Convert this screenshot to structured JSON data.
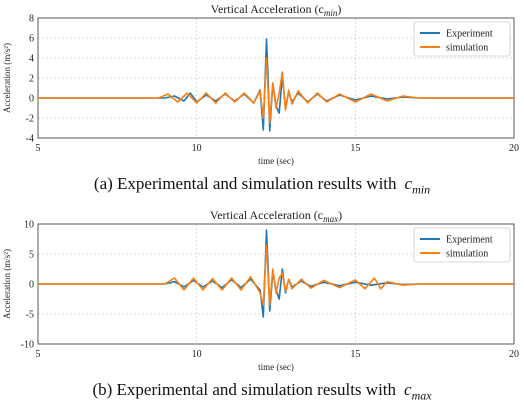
{
  "captions": [
    {
      "prefix": "(a) Experimental and simulation results with",
      "symbol": "c",
      "subscript": "min"
    },
    {
      "prefix": "(b) Experimental and simulation results with",
      "symbol": "c",
      "subscript": "max"
    }
  ],
  "chart_data": [
    {
      "type": "line",
      "title": "Vertical Acceleration (c",
      "title_sub": "min",
      "title_end": ")",
      "xlabel": "time (sec)",
      "ylabel": "Acceleration (m/s²)",
      "xlim": [
        5,
        20
      ],
      "ylim": [
        -4,
        8
      ],
      "xticks": [
        5,
        10,
        15,
        20
      ],
      "yticks": [
        -4,
        -2,
        0,
        2,
        4,
        6,
        8
      ],
      "grid": true,
      "legend": "top-right",
      "series": [
        {
          "name": "Experiment",
          "color": "#1f77b4",
          "x": [
            5,
            9.0,
            9.3,
            9.6,
            9.8,
            10.0,
            10.3,
            10.6,
            10.9,
            11.2,
            11.5,
            11.8,
            12.0,
            12.1,
            12.2,
            12.25,
            12.3,
            12.35,
            12.4,
            12.5,
            12.6,
            12.7,
            12.8,
            12.9,
            13.0,
            13.2,
            13.5,
            13.8,
            14.1,
            14.5,
            15.0,
            15.5,
            16.0,
            16.5,
            17.0,
            20
          ],
          "values": [
            0,
            0,
            0.2,
            -0.3,
            0.5,
            -0.4,
            0.3,
            -0.3,
            0.4,
            -0.3,
            0.4,
            -0.5,
            0.8,
            -3.2,
            5.9,
            2.0,
            -3.3,
            -1.0,
            1.5,
            -0.8,
            -1.5,
            2.2,
            -1.0,
            0.6,
            -0.4,
            0.5,
            -0.4,
            0.4,
            -0.3,
            0.3,
            -0.2,
            0.2,
            -0.1,
            0.1,
            0,
            0
          ]
        },
        {
          "name": "simulation",
          "color": "#ff7f0e",
          "x": [
            5,
            8.8,
            9.1,
            9.4,
            9.7,
            10.0,
            10.3,
            10.6,
            10.9,
            11.2,
            11.5,
            11.8,
            12.0,
            12.1,
            12.2,
            12.3,
            12.4,
            12.5,
            12.6,
            12.7,
            12.8,
            12.9,
            13.0,
            13.2,
            13.5,
            13.8,
            14.1,
            14.5,
            15.0,
            15.5,
            16.0,
            16.5,
            17.0,
            20
          ],
          "values": [
            0,
            0,
            0.4,
            -0.4,
            0.5,
            -0.5,
            0.5,
            -0.5,
            0.5,
            -0.4,
            0.5,
            -0.5,
            0.7,
            -2.0,
            4.0,
            -2.5,
            1.5,
            -1.0,
            0.5,
            2.6,
            -1.2,
            0.8,
            -0.6,
            0.7,
            -0.5,
            0.5,
            -0.4,
            0.4,
            -0.4,
            0.4,
            -0.3,
            0.2,
            0,
            0
          ]
        }
      ]
    },
    {
      "type": "line",
      "title": "Vertical Acceleration (c",
      "title_sub": "max",
      "title_end": ")",
      "xlabel": "time (sec)",
      "ylabel": "Acceleration (m/s²)",
      "xlim": [
        5,
        20
      ],
      "ylim": [
        -10,
        10
      ],
      "xticks": [
        5,
        10,
        15,
        20
      ],
      "yticks": [
        -10,
        -5,
        0,
        5,
        10
      ],
      "grid": true,
      "legend": "top-right",
      "series": [
        {
          "name": "Experiment",
          "color": "#1f77b4",
          "x": [
            5,
            9.0,
            9.3,
            9.6,
            9.9,
            10.2,
            10.5,
            10.8,
            11.1,
            11.4,
            11.7,
            12.0,
            12.1,
            12.2,
            12.25,
            12.3,
            12.35,
            12.4,
            12.5,
            12.6,
            12.7,
            12.8,
            12.9,
            13.0,
            13.3,
            13.6,
            14.0,
            14.5,
            15.0,
            15.5,
            16.0,
            16.5,
            17.0,
            20
          ],
          "values": [
            0,
            0,
            0.4,
            -0.5,
            0.6,
            -0.5,
            0.5,
            -0.6,
            0.7,
            -0.6,
            0.8,
            -1.0,
            -5.5,
            9.0,
            3.0,
            -4.5,
            -1.5,
            2.0,
            -1.0,
            -2.5,
            2.5,
            -1.5,
            0.8,
            -0.5,
            0.5,
            -0.4,
            0.3,
            -0.3,
            0.3,
            -0.2,
            0.2,
            -0.1,
            0,
            0
          ]
        },
        {
          "name": "simulation",
          "color": "#ff7f0e",
          "x": [
            5,
            9.0,
            9.3,
            9.6,
            9.9,
            10.2,
            10.5,
            10.8,
            11.1,
            11.4,
            11.7,
            12.0,
            12.1,
            12.2,
            12.3,
            12.4,
            12.5,
            12.6,
            12.7,
            12.8,
            12.9,
            13.0,
            13.3,
            13.6,
            14.0,
            14.5,
            15.0,
            15.3,
            15.6,
            15.8,
            16.0,
            16.5,
            17.0,
            20
          ],
          "values": [
            0,
            0,
            1.0,
            -1.0,
            1.0,
            -1.0,
            0.9,
            -1.0,
            1.0,
            -1.0,
            1.2,
            -1.5,
            -3.5,
            6.5,
            -3.5,
            2.5,
            -1.5,
            1.0,
            1.8,
            -1.2,
            0.8,
            -0.8,
            0.8,
            -0.7,
            0.6,
            -0.6,
            0.7,
            -0.8,
            1.0,
            -0.8,
            0.4,
            -0.2,
            0,
            0
          ]
        }
      ]
    }
  ]
}
